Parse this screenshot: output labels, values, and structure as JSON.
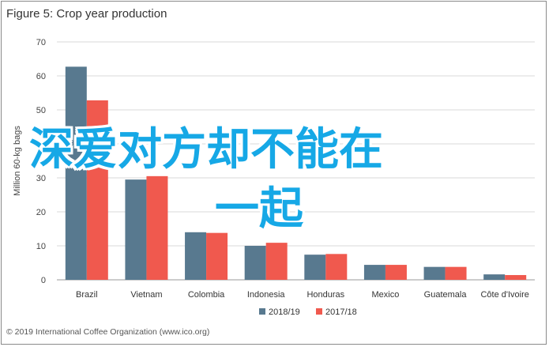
{
  "chart_data": {
    "type": "bar",
    "title": "Figure 5: Crop year production",
    "ylabel": "Million 60-kg bags",
    "xlabel": "",
    "ylim": [
      0,
      70
    ],
    "yticks": [
      0,
      10,
      20,
      30,
      40,
      50,
      60,
      70
    ],
    "grid": true,
    "legend_position": "bottom",
    "categories": [
      "Brazil",
      "Vietnam",
      "Colombia",
      "Indonesia",
      "Honduras",
      "Mexico",
      "Guatemala",
      "Côte d'Ivoire"
    ],
    "series": [
      {
        "name": "2018/19",
        "color": "#58798f",
        "values": [
          62.7,
          29.5,
          14.0,
          10.0,
          7.4,
          4.4,
          3.8,
          1.6
        ]
      },
      {
        "name": "2017/18",
        "color": "#f0594e",
        "values": [
          52.8,
          30.5,
          13.8,
          10.9,
          7.6,
          4.4,
          3.8,
          1.4
        ]
      }
    ]
  },
  "footer": {
    "copyright": "© 2019 International Coffee Organization (www.ico.org)"
  },
  "overlay": {
    "line1": "深爱对方却不能在",
    "line2": "一起",
    "color": "#16a8e6"
  }
}
